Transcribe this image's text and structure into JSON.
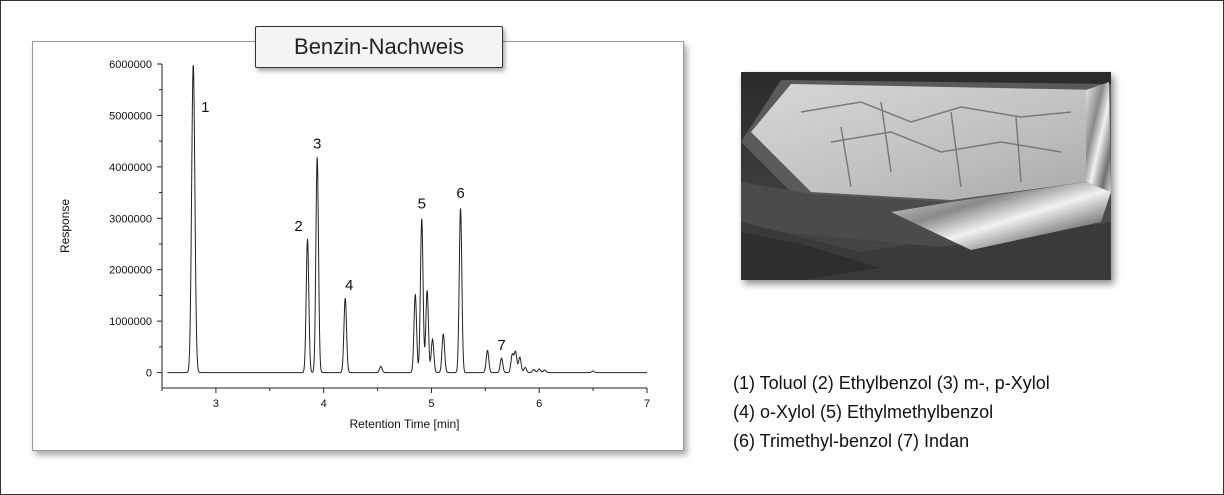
{
  "chart_data": {
    "type": "line",
    "title": "Benzin-Nachweis",
    "xlabel": "Retention Time [min]",
    "ylabel": "Response",
    "xlim": [
      2.5,
      7
    ],
    "ylim": [
      -300000,
      6000000
    ],
    "xticks": [
      3,
      4,
      5,
      6,
      7
    ],
    "yticks": [
      0,
      1000000,
      2000000,
      3000000,
      4000000,
      5000000,
      6000000
    ],
    "grid": false,
    "series": [
      {
        "peaks": [
          {
            "rt": 2.79,
            "height": 6000000,
            "label": "1"
          },
          {
            "rt": 3.85,
            "height": 2600000,
            "label": "2"
          },
          {
            "rt": 3.94,
            "height": 4200000,
            "label": "3"
          },
          {
            "rt": 4.2,
            "height": 1450000,
            "label": "4"
          },
          {
            "rt": 4.53,
            "height": 120000
          },
          {
            "rt": 4.85,
            "height": 1520000
          },
          {
            "rt": 4.91,
            "height": 3000000,
            "label": "5"
          },
          {
            "rt": 4.96,
            "height": 1600000
          },
          {
            "rt": 5.01,
            "height": 650000
          },
          {
            "rt": 5.11,
            "height": 750000
          },
          {
            "rt": 5.27,
            "height": 3200000,
            "label": "6"
          },
          {
            "rt": 5.52,
            "height": 430000
          },
          {
            "rt": 5.65,
            "height": 280000,
            "label": "7"
          },
          {
            "rt": 5.75,
            "height": 350000
          },
          {
            "rt": 5.78,
            "height": 400000
          },
          {
            "rt": 5.82,
            "height": 300000
          },
          {
            "rt": 5.87,
            "height": 100000
          },
          {
            "rt": 5.95,
            "height": 60000
          },
          {
            "rt": 6.0,
            "height": 70000
          },
          {
            "rt": 6.05,
            "height": 50000
          },
          {
            "rt": 6.5,
            "height": 30000
          }
        ]
      }
    ]
  },
  "legend_lines": [
    "(1) Toluol (2) Ethylbenzol (3) m-, p-Xylol",
    "(4) o-Xylol (5) Ethylmethylbenzol",
    "(6) Trimethyl-benzol (7) Indan"
  ],
  "colors": {
    "trace": "#222222",
    "axis": "#222222",
    "text": "#111111",
    "title_box_bg": "#f4f4f4"
  },
  "photo": {
    "icon": "photo-icon"
  }
}
